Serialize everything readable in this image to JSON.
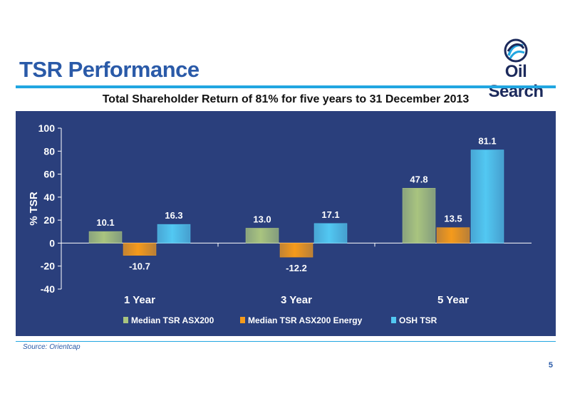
{
  "slide": {
    "title": "TSR Performance",
    "subtitle": "Total Shareholder Return of 81% for five years to 31 December 2013",
    "source": "Source: Orientcap",
    "page_number": "5"
  },
  "logo": {
    "text": "Oil Search"
  },
  "colors": {
    "title": "#2a5aa8",
    "accent_rule": "#21a6e1",
    "chart_background": "#2a3f7c",
    "series_asx200": "#a9c47f",
    "series_energy": "#f59a1b",
    "series_osh": "#52c8f2"
  },
  "chart_data": {
    "type": "bar",
    "categories": [
      "1 Year",
      "3 Year",
      "5 Year"
    ],
    "series": [
      {
        "name": "Median TSR ASX200",
        "values": [
          10.1,
          13.0,
          47.8
        ],
        "color": "#a9c47f"
      },
      {
        "name": "Median TSR ASX200 Energy",
        "values": [
          -10.7,
          -12.2,
          13.5
        ],
        "color": "#f59a1b"
      },
      {
        "name": "OSH TSR",
        "values": [
          16.3,
          17.1,
          81.1
        ],
        "color": "#52c8f2"
      }
    ],
    "ylabel": "% TSR",
    "xlabel": "",
    "ylim": [
      -40,
      100
    ],
    "yticks": [
      100,
      80,
      60,
      40,
      20,
      0,
      -20,
      -40
    ],
    "legend_position": "bottom",
    "grid": false
  }
}
